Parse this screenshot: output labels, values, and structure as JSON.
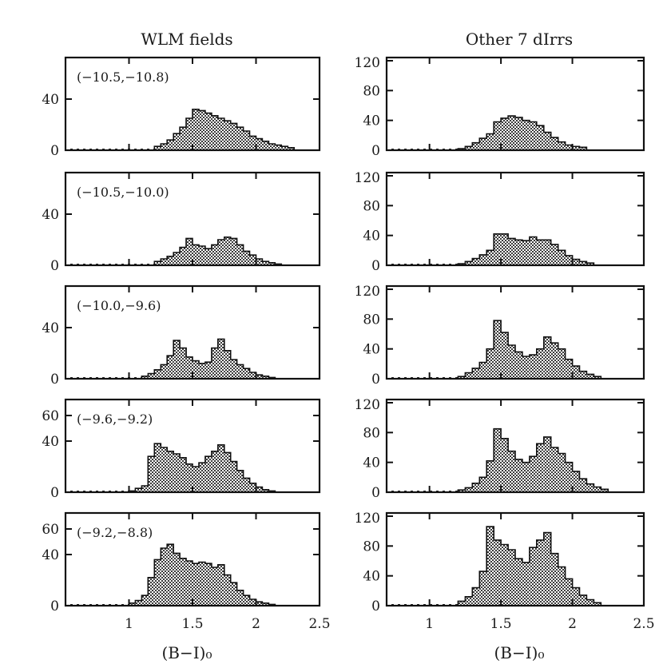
{
  "chart_data": {
    "type": "bar",
    "xlabel_left": "(B−I)₀",
    "xlabel_right": "(B−I)₀",
    "columns": [
      {
        "title": "WLM fields",
        "xlim": [
          0.5,
          2.5
        ],
        "xticks": [
          1,
          1.5,
          2,
          2.5
        ],
        "xtick_labels": [
          "1",
          "1.5",
          "2",
          "2.5"
        ],
        "bin_width": 0.05,
        "panels": [
          {
            "label": "(−10.5,−10.8)",
            "ylim": [
              0,
              70
            ],
            "yticks": [
              0,
              40
            ],
            "ytick_labels": [
              "0",
              "40"
            ],
            "bin_start": 1.2,
            "values": [
              3,
              5,
              8,
              13,
              18,
              25,
              32,
              31,
              29,
              27,
              25,
              23,
              21,
              18,
              15,
              11,
              9,
              7,
              5,
              4,
              3,
              2
            ]
          },
          {
            "label": "(−10.5,−10.0)",
            "ylim": [
              0,
              70
            ],
            "yticks": [
              0,
              40
            ],
            "ytick_labels": [
              "0",
              "40"
            ],
            "bin_start": 1.2,
            "values": [
              3,
              5,
              7,
              10,
              14,
              21,
              16,
              15,
              13,
              16,
              20,
              22,
              21,
              16,
              11,
              8,
              5,
              3,
              2,
              1
            ]
          },
          {
            "label": "(−10.0,−9.6)",
            "ylim": [
              0,
              70
            ],
            "yticks": [
              0,
              40
            ],
            "ytick_labels": [
              "0",
              "40"
            ],
            "bin_start": 1.1,
            "values": [
              2,
              4,
              7,
              11,
              18,
              30,
              24,
              17,
              14,
              12,
              13,
              24,
              31,
              22,
              15,
              11,
              8,
              5,
              3,
              2,
              1
            ]
          },
          {
            "label": "(−9.6,−9.2)",
            "ylim": [
              0,
              70
            ],
            "yticks": [
              0,
              40,
              60
            ],
            "ytick_labels": [
              "0",
              "40",
              "60"
            ],
            "bin_start": 1.0,
            "values": [
              1,
              3,
              5,
              28,
              38,
              35,
              32,
              30,
              27,
              22,
              20,
              23,
              28,
              32,
              37,
              31,
              24,
              17,
              11,
              7,
              4,
              2,
              1
            ]
          },
          {
            "label": "(−9.2,−8.8)",
            "ylim": [
              0,
              70
            ],
            "yticks": [
              0,
              40,
              60
            ],
            "ytick_labels": [
              "0",
              "40",
              "60"
            ],
            "bin_start": 1.0,
            "values": [
              2,
              4,
              8,
              22,
              36,
              45,
              48,
              41,
              37,
              35,
              33,
              34,
              33,
              30,
              32,
              24,
              18,
              12,
              8,
              5,
              3,
              2,
              1
            ]
          }
        ]
      },
      {
        "title": "Other 7 dIrrs",
        "xlim": [
          0.7,
          2.5
        ],
        "xticks": [
          1,
          1.5,
          2,
          2.5
        ],
        "xtick_labels": [
          "1",
          "1.5",
          "2",
          "2.5"
        ],
        "bin_width": 0.05,
        "panels": [
          {
            "label": "",
            "ylim": [
              0,
              120
            ],
            "yticks": [
              0,
              40,
              80,
              120
            ],
            "ytick_labels": [
              "0",
              "40",
              "80",
              "120"
            ],
            "bin_start": 1.2,
            "values": [
              2,
              5,
              10,
              16,
              22,
              38,
              43,
              46,
              44,
              40,
              38,
              33,
              24,
              17,
              11,
              7,
              5,
              4
            ]
          },
          {
            "label": "",
            "ylim": [
              0,
              120
            ],
            "yticks": [
              0,
              40,
              80,
              120
            ],
            "ytick_labels": [
              "0",
              "40",
              "80",
              "120"
            ],
            "bin_start": 1.2,
            "values": [
              2,
              5,
              9,
              14,
              20,
              42,
              42,
              36,
              34,
              33,
              38,
              34,
              34,
              28,
              20,
              13,
              8,
              5,
              3
            ]
          },
          {
            "label": "",
            "ylim": [
              0,
              120
            ],
            "yticks": [
              0,
              40,
              80,
              120
            ],
            "ytick_labels": [
              "0",
              "40",
              "80",
              "120"
            ],
            "bin_start": 1.2,
            "values": [
              3,
              8,
              14,
              22,
              40,
              78,
              62,
              45,
              36,
              30,
              32,
              40,
              56,
              48,
              40,
              26,
              17,
              10,
              6,
              3
            ]
          },
          {
            "label": "",
            "ylim": [
              0,
              120
            ],
            "yticks": [
              0,
              40,
              80,
              120
            ],
            "ytick_labels": [
              "0",
              "40",
              "80",
              "120"
            ],
            "bin_start": 1.2,
            "values": [
              3,
              6,
              12,
              20,
              42,
              85,
              72,
              55,
              44,
              40,
              48,
              65,
              74,
              60,
              52,
              40,
              28,
              18,
              11,
              7,
              4
            ]
          },
          {
            "label": "",
            "ylim": [
              0,
              120
            ],
            "yticks": [
              0,
              40,
              80,
              120
            ],
            "ytick_labels": [
              "0",
              "40",
              "80",
              "120"
            ],
            "bin_start": 1.2,
            "values": [
              6,
              12,
              24,
              46,
              106,
              88,
              82,
              75,
              63,
              58,
              78,
              88,
              98,
              70,
              52,
              36,
              24,
              14,
              8,
              4
            ]
          }
        ]
      }
    ]
  }
}
